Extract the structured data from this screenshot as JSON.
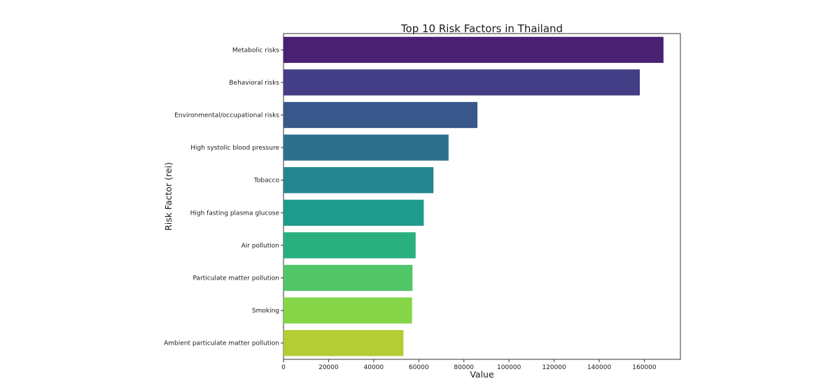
{
  "chart_data": {
    "type": "bar",
    "orientation": "horizontal",
    "title": "Top 10 Risk Factors in Thailand",
    "xlabel": "Value",
    "ylabel": "Risk Factor (rei)",
    "categories": [
      "Metabolic risks",
      "Behavioral risks",
      "Environmental/occupational risks",
      "High systolic blood pressure",
      "Tobacco",
      "High fasting plasma glucose",
      "Air pollution",
      "Particulate matter pollution",
      "Smoking",
      "Ambient particulate matter pollution"
    ],
    "values": [
      168500,
      158000,
      86000,
      73200,
      66500,
      62200,
      58600,
      57200,
      57000,
      53200
    ],
    "colors": [
      "#482173",
      "#433e85",
      "#38588c",
      "#2d708e",
      "#25858e",
      "#1e9b8a",
      "#2ab07f",
      "#52c569",
      "#86d549",
      "#b4cd36"
    ],
    "xlim": [
      0,
      176000
    ],
    "xticks": [
      0,
      20000,
      40000,
      60000,
      80000,
      100000,
      120000,
      140000,
      160000
    ],
    "xtick_labels": [
      "0",
      "20000",
      "40000",
      "60000",
      "80000",
      "100000",
      "120000",
      "140000",
      "160000"
    ],
    "grid": false,
    "legend": "none"
  }
}
